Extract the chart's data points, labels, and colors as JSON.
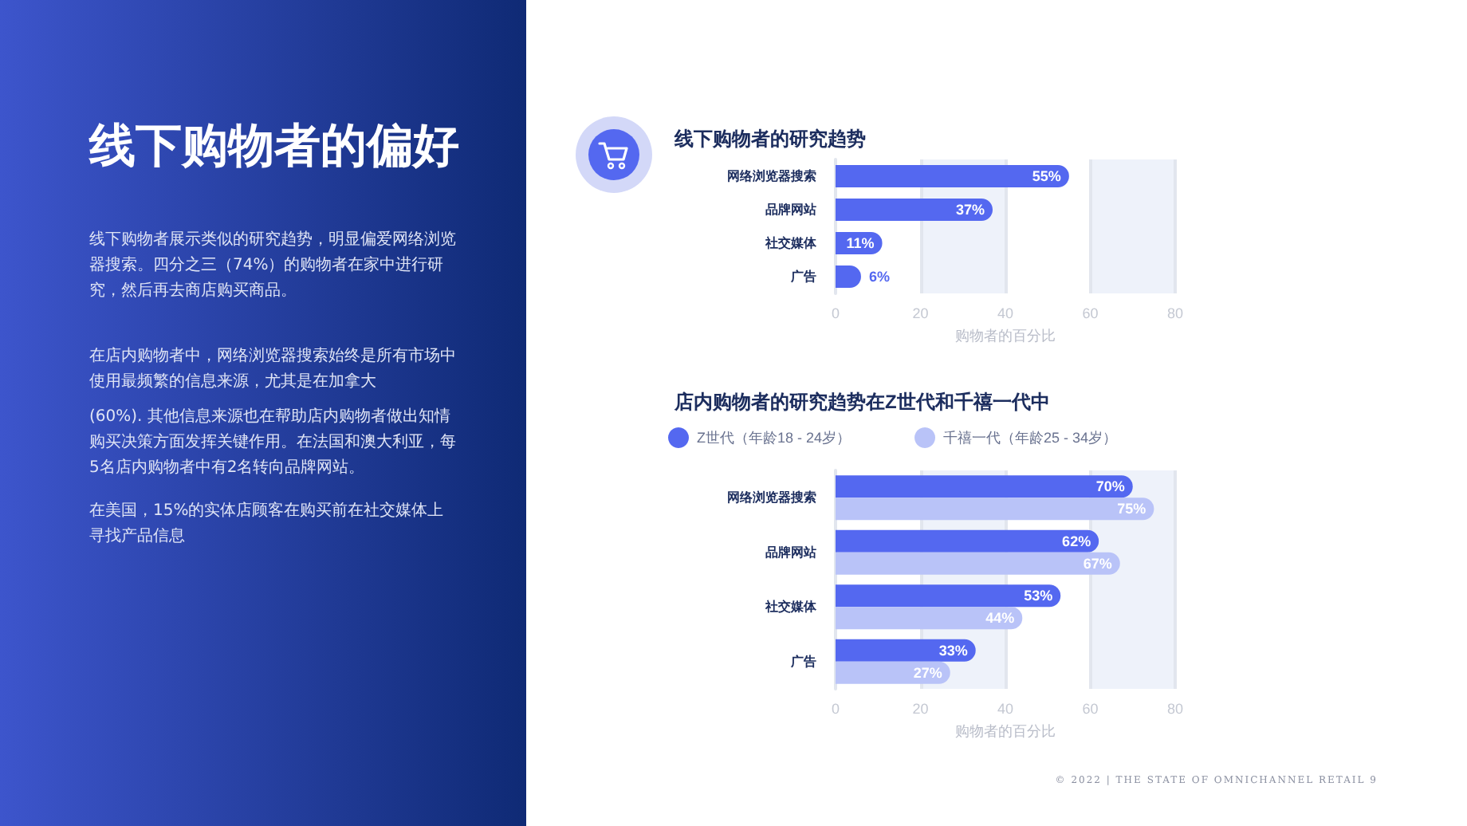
{
  "chart_data": [
    {
      "type": "other",
      "title": "线下购物者的偏好",
      "annotations": [
        "线下购物者展示类似的研究趋势，明显偏爱网络浏览器搜索。四分之三（74%）的购物者在家中进行研究，然后再去商店购买商品。",
        "在店内购物者中，网络浏览器搜索始终是所有市场中使用最频繁的信息来源，尤其是在加拿大",
        "(60%). 其他信息来源也在帮助店内购物者做出知情购买决策方面发挥关键作用。在法国和澳大利亚，每5名店内购物者中有2名转向品牌网站。",
        "在美国，15%的实体店顾客在购买前在社交媒体上寻找产品信息",
        "© 2022 | THE STATE OF OMNICHANNEL RETAIL 9"
      ]
    },
    {
      "type": "bar",
      "orientation": "horizontal",
      "title": "线下购物者的研究趋势",
      "xlabel": "购物者的百分比",
      "categories": [
        "网络浏览器搜索",
        "品牌网站",
        "社交媒体",
        "广告"
      ],
      "values": [
        55,
        37,
        11,
        6
      ],
      "color": "#5468f0",
      "value_labels": [
        "55%",
        "37%",
        "11%",
        "6%"
      ],
      "xlim": [
        0,
        80
      ],
      "xticks": [
        0,
        20,
        40,
        60,
        80
      ],
      "grid": "x"
    },
    {
      "type": "bar",
      "orientation": "horizontal",
      "title": "店内购物者的研究趋势在Z世代和千禧一代中",
      "xlabel": "购物者的百分比",
      "categories": [
        "网络浏览器搜索",
        "品牌网站",
        "社交媒体",
        "广告"
      ],
      "series": [
        {
          "name": "Z世代（年龄18 - 24岁）",
          "color": "#5468f0",
          "values": [
            70,
            62,
            53,
            33
          ],
          "value_labels": [
            "70%",
            "62%",
            "53%",
            "33%"
          ]
        },
        {
          "name": "千禧一代（年龄25 - 34岁）",
          "color": "#b9c3f8",
          "values": [
            75,
            67,
            44,
            27
          ],
          "value_labels": [
            "75%",
            "67%",
            "44%",
            "27%"
          ]
        }
      ],
      "xlim": [
        0,
        80
      ],
      "xticks": [
        0,
        20,
        40,
        60,
        80
      ],
      "grid": "x",
      "legend": "top left"
    }
  ]
}
